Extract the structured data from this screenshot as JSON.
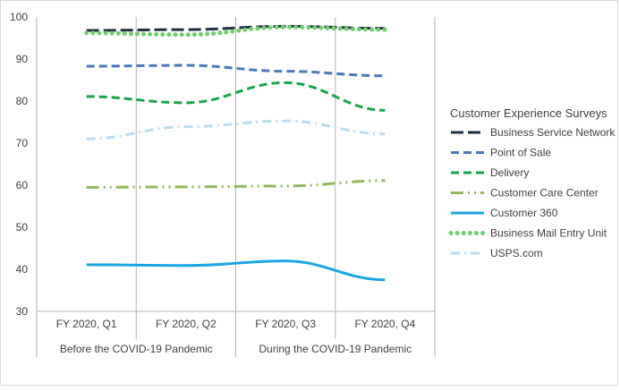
{
  "chart_data": {
    "type": "line",
    "title": "",
    "xlabel": "",
    "ylabel": "",
    "ylim": [
      30,
      100
    ],
    "yticks": [
      30,
      40,
      50,
      60,
      70,
      80,
      90,
      100
    ],
    "grid": "vertical gridlines at category boundaries",
    "categories": [
      "FY 2020, Q1",
      "FY 2020, Q2",
      "FY 2020, Q3",
      "FY 2020, Q4"
    ],
    "category_groups": [
      {
        "label": "Before the COVID-19 Pandemic",
        "span": 2
      },
      {
        "label": "During the COVID-19 Pandemic",
        "span": 2
      }
    ],
    "legend_title": "Customer Experience Surveys",
    "legend_position": "right",
    "series": [
      {
        "name": "Business Service Network",
        "values": [
          96.8,
          97.0,
          97.8,
          97.3
        ],
        "color": "#1f2e44",
        "dash": "longdash"
      },
      {
        "name": "Point of Sale",
        "values": [
          88.3,
          88.5,
          87.1,
          86.0
        ],
        "color": "#4a78b8",
        "dash": "dash"
      },
      {
        "name": "Delivery",
        "values": [
          81.1,
          79.6,
          84.4,
          77.8
        ],
        "color": "#1aa34a",
        "dash": "dash"
      },
      {
        "name": "Customer Care Center",
        "values": [
          59.5,
          59.6,
          59.8,
          61.1
        ],
        "color": "#8fb85a",
        "dash": "longdashdot"
      },
      {
        "name": "Customer 360",
        "values": [
          41.1,
          40.9,
          42.0,
          37.5
        ],
        "color": "#1aa6e0",
        "dash": "solid"
      },
      {
        "name": "Business Mail Entry Unit",
        "values": [
          96.2,
          95.8,
          97.6,
          97.0
        ],
        "color": "#6fcf6a",
        "dash": "dot"
      },
      {
        "name": "USPS.com",
        "values": [
          71.0,
          73.9,
          75.3,
          72.2
        ],
        "color": "#b8dcef",
        "dash": "dashdot"
      }
    ]
  }
}
